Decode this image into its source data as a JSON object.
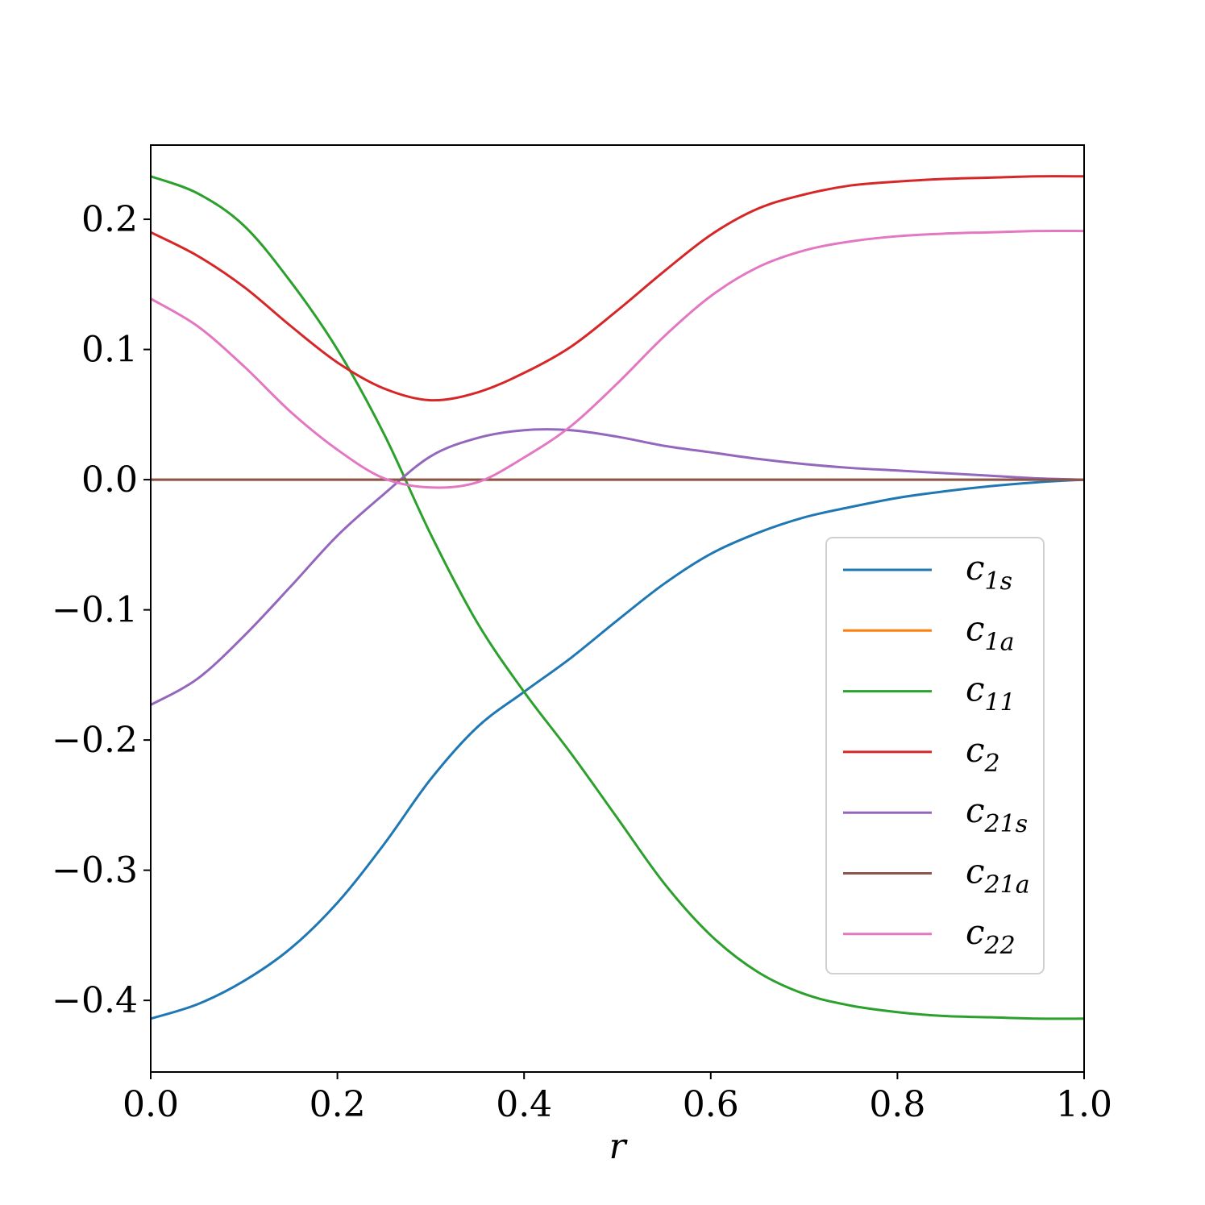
{
  "chart_data": {
    "type": "line",
    "title": "",
    "xlabel": "r",
    "ylabel": "",
    "xlim": [
      0.0,
      1.0
    ],
    "ylim": [
      -0.455,
      0.257
    ],
    "xticks": [
      0.0,
      0.2,
      0.4,
      0.6,
      0.8,
      1.0
    ],
    "xtick_labels": [
      "0.0",
      "0.2",
      "0.4",
      "0.6",
      "0.8",
      "1.0"
    ],
    "yticks": [
      -0.4,
      -0.3,
      -0.2,
      -0.1,
      0.0,
      0.1,
      0.2
    ],
    "ytick_labels": [
      "−0.4",
      "−0.3",
      "−0.2",
      "−0.1",
      "0.0",
      "0.1",
      "0.2"
    ],
    "grid": false,
    "legend_position": "center-right",
    "x": [
      0.0,
      0.05,
      0.1,
      0.15,
      0.2,
      0.25,
      0.3,
      0.35,
      0.4,
      0.45,
      0.5,
      0.55,
      0.6,
      0.65,
      0.7,
      0.75,
      0.8,
      0.85,
      0.9,
      0.95,
      1.0
    ],
    "series": [
      {
        "name": "c",
        "sub": "1s",
        "color": "#1f77b4",
        "values": [
          -0.414,
          -0.403,
          -0.385,
          -0.36,
          -0.325,
          -0.28,
          -0.23,
          -0.19,
          -0.163,
          -0.137,
          -0.108,
          -0.08,
          -0.057,
          -0.041,
          -0.029,
          -0.021,
          -0.014,
          -0.009,
          -0.005,
          -0.002,
          0.0
        ]
      },
      {
        "name": "c",
        "sub": "1a",
        "color": "#ff7f0e",
        "values": [
          0.0,
          0.0,
          0.0,
          0.0,
          0.0,
          0.0,
          0.0,
          0.0,
          0.0,
          0.0,
          0.0,
          0.0,
          0.0,
          0.0,
          0.0,
          0.0,
          0.0,
          0.0,
          0.0,
          0.0,
          0.0
        ]
      },
      {
        "name": "c",
        "sub": "11",
        "color": "#2ca02c",
        "values": [
          0.233,
          0.22,
          0.195,
          0.152,
          0.1,
          0.035,
          -0.042,
          -0.11,
          -0.163,
          -0.21,
          -0.26,
          -0.31,
          -0.35,
          -0.378,
          -0.395,
          -0.404,
          -0.409,
          -0.412,
          -0.413,
          -0.414,
          -0.414
        ]
      },
      {
        "name": "c",
        "sub": "2",
        "color": "#d62728",
        "values": [
          0.19,
          0.172,
          0.148,
          0.118,
          0.09,
          0.07,
          0.061,
          0.067,
          0.082,
          0.102,
          0.13,
          0.16,
          0.188,
          0.208,
          0.219,
          0.226,
          0.229,
          0.231,
          0.232,
          0.233,
          0.233
        ]
      },
      {
        "name": "c",
        "sub": "21s",
        "color": "#9467bd",
        "values": [
          -0.173,
          -0.153,
          -0.12,
          -0.082,
          -0.043,
          -0.011,
          0.018,
          0.032,
          0.038,
          0.038,
          0.033,
          0.026,
          0.021,
          0.016,
          0.012,
          0.009,
          0.007,
          0.005,
          0.003,
          0.001,
          0.0
        ]
      },
      {
        "name": "c",
        "sub": "21a",
        "color": "#8c564b",
        "values": [
          0.0,
          0.0,
          0.0,
          0.0,
          0.0,
          0.0,
          0.0,
          0.0,
          0.0,
          0.0,
          0.0,
          0.0,
          0.0,
          0.0,
          0.0,
          0.0,
          0.0,
          0.0,
          0.0,
          0.0,
          0.0
        ]
      },
      {
        "name": "c",
        "sub": "22",
        "color": "#e377c2",
        "values": [
          0.139,
          0.118,
          0.087,
          0.052,
          0.023,
          0.001,
          -0.006,
          -0.002,
          0.017,
          0.041,
          0.074,
          0.11,
          0.141,
          0.163,
          0.176,
          0.183,
          0.187,
          0.189,
          0.19,
          0.191,
          0.191
        ]
      }
    ]
  }
}
